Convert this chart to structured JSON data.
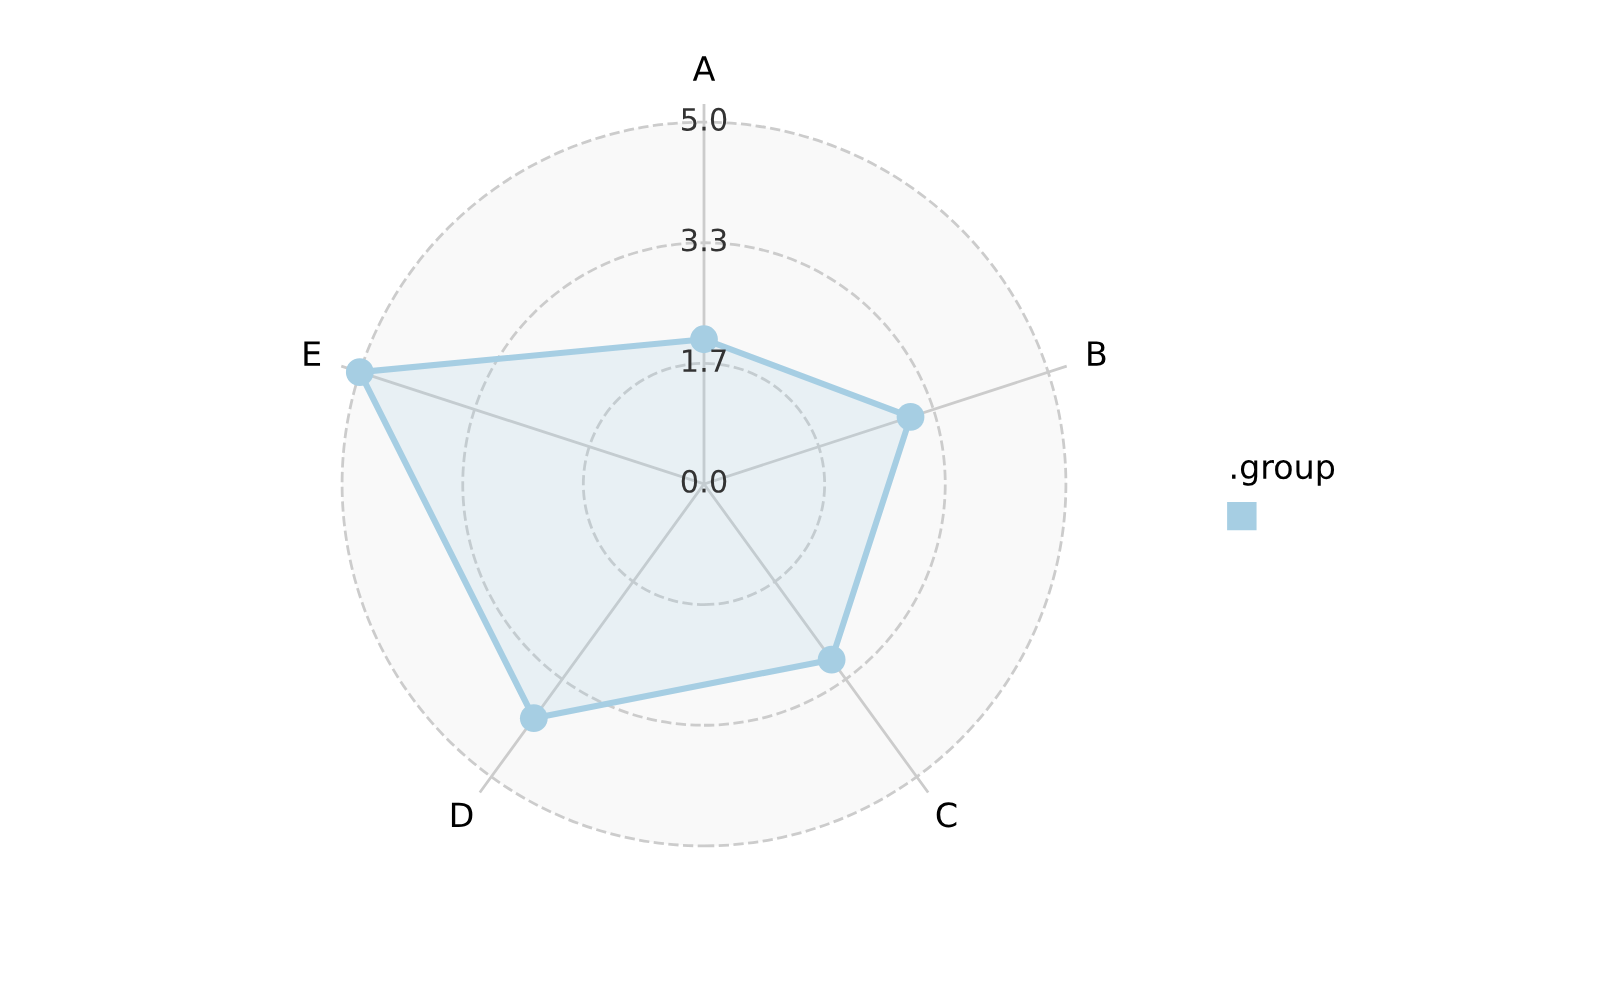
{
  "chart_data": {
    "type": "radar",
    "categories": [
      "A",
      "B",
      "C",
      "D",
      "E"
    ],
    "series": [
      {
        "color": "#a6cee3",
        "values": [
          2.0,
          3.0,
          3.0,
          4.0,
          5.0
        ]
      }
    ],
    "ylim": [
      0,
      5
    ],
    "yticks": [
      {
        "value": 0,
        "label": "0.0"
      },
      {
        "value": 1.667,
        "label": "1.7"
      },
      {
        "value": 3.333,
        "label": "3.3"
      },
      {
        "value": 5,
        "label": "5.0"
      }
    ],
    "grid": true,
    "marker": "circle",
    "line_style": "solid",
    "legend_title": ".group"
  }
}
